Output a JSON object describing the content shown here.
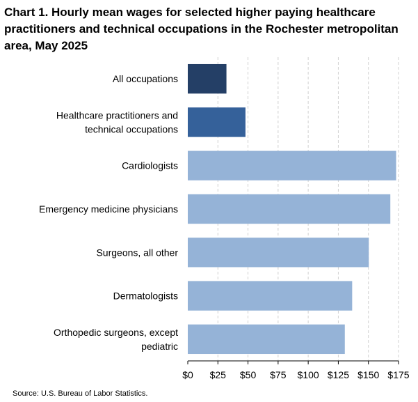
{
  "chart_data": {
    "type": "bar",
    "orientation": "horizontal",
    "title": "Chart 1. Hourly mean wages for selected higher paying healthcare practitioners and technical occupations in the Rochester metropolitan area, May 2025",
    "categories": [
      [
        "All occupations"
      ],
      [
        "Healthcare practitioners and",
        "technical occupations"
      ],
      [
        "Cardiologists"
      ],
      [
        "Emergency medicine physicians"
      ],
      [
        "Surgeons, all other"
      ],
      [
        "Dermatologists"
      ],
      [
        "Orthopedic surgeons, except",
        "pediatric"
      ]
    ],
    "values": [
      32.1,
      47.9,
      173.0,
      168.2,
      150.3,
      136.5,
      130.4
    ],
    "colors": [
      "#243f66",
      "#35619a",
      "#95b3d7",
      "#95b3d7",
      "#95b3d7",
      "#95b3d7",
      "#95b3d7"
    ],
    "xlim": [
      0,
      175
    ],
    "xticks": [
      0,
      25,
      50,
      75,
      100,
      125,
      150,
      175
    ],
    "xtick_labels": [
      "$0",
      "$25",
      "$50",
      "$75",
      "$100",
      "$125",
      "$150",
      "$175"
    ],
    "grid": "vertical-dashed",
    "legend": "none"
  },
  "source": "Source: U.S. Bureau of Labor Statistics."
}
